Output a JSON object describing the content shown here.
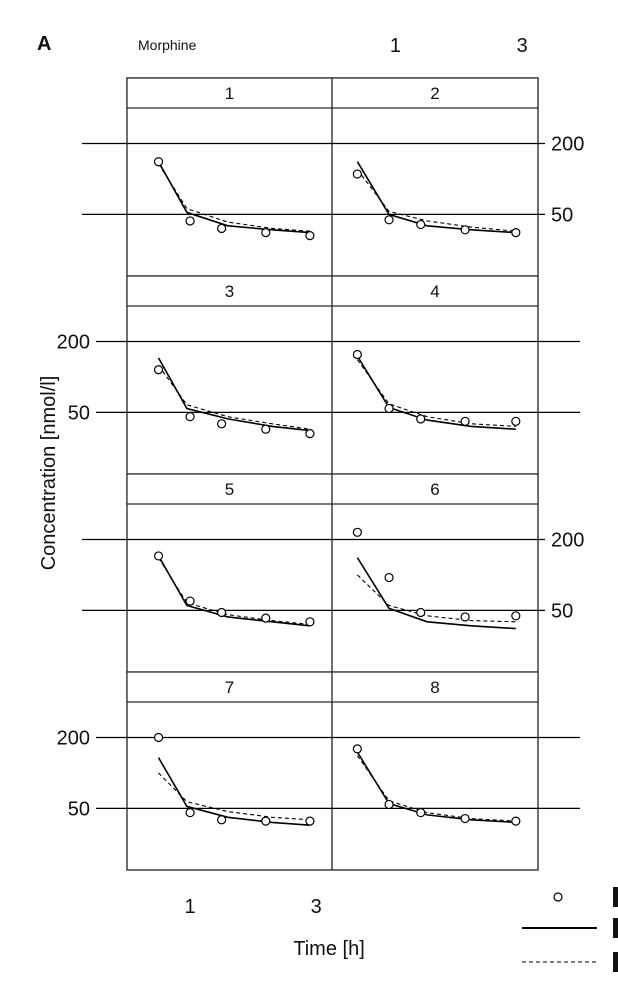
{
  "chart_data": {
    "type": "scatter",
    "panel_tag": "A",
    "drug_label": "Morphine",
    "xlabel": "Time [h]",
    "ylabel": "Concentration [nmol/l]",
    "x_ticks": [
      1,
      3
    ],
    "y_ticks": [
      50,
      200
    ],
    "y_scale": "log",
    "xlim": [
      0,
      3.25
    ],
    "ylim": [
      15,
      400
    ],
    "legend": {
      "placement": "bottom-right",
      "items": [
        "",
        "",
        ""
      ]
    },
    "panels": [
      {
        "label": "1",
        "observed": [
          [
            0.5,
            140
          ],
          [
            1.0,
            44
          ],
          [
            1.5,
            38
          ],
          [
            2.2,
            35
          ],
          [
            2.9,
            33
          ]
        ],
        "solid": [
          [
            0.5,
            140
          ],
          [
            0.95,
            52
          ],
          [
            1.6,
            40
          ],
          [
            2.3,
            37
          ],
          [
            2.9,
            35
          ]
        ],
        "dashed": [
          [
            0.5,
            135
          ],
          [
            0.95,
            56
          ],
          [
            1.6,
            43
          ],
          [
            2.3,
            38
          ],
          [
            2.9,
            36
          ]
        ]
      },
      {
        "label": "2",
        "observed": [
          [
            0.4,
            110
          ],
          [
            0.9,
            45
          ],
          [
            1.4,
            41
          ],
          [
            2.1,
            37
          ],
          [
            2.9,
            35
          ]
        ],
        "solid": [
          [
            0.4,
            140
          ],
          [
            0.9,
            50
          ],
          [
            1.5,
            40
          ],
          [
            2.2,
            37
          ],
          [
            2.9,
            35
          ]
        ],
        "dashed": [
          [
            0.4,
            120
          ],
          [
            0.9,
            53
          ],
          [
            1.5,
            44
          ],
          [
            2.2,
            39
          ],
          [
            2.9,
            36
          ]
        ]
      },
      {
        "label": "3",
        "observed": [
          [
            0.5,
            115
          ],
          [
            1.0,
            46
          ],
          [
            1.5,
            40
          ],
          [
            2.2,
            36
          ],
          [
            2.9,
            33
          ]
        ],
        "solid": [
          [
            0.5,
            145
          ],
          [
            0.95,
            54
          ],
          [
            1.6,
            44
          ],
          [
            2.3,
            38
          ],
          [
            2.9,
            35
          ]
        ],
        "dashed": [
          [
            0.5,
            125
          ],
          [
            0.95,
            58
          ],
          [
            1.6,
            46
          ],
          [
            2.3,
            40
          ],
          [
            2.9,
            36
          ]
        ]
      },
      {
        "label": "4",
        "observed": [
          [
            0.4,
            155
          ],
          [
            0.9,
            54
          ],
          [
            1.4,
            44
          ],
          [
            2.1,
            42
          ],
          [
            2.9,
            42
          ]
        ],
        "solid": [
          [
            0.4,
            150
          ],
          [
            0.9,
            55
          ],
          [
            1.5,
            43
          ],
          [
            2.2,
            38
          ],
          [
            2.9,
            36
          ]
        ],
        "dashed": [
          [
            0.4,
            140
          ],
          [
            0.9,
            59
          ],
          [
            1.5,
            46
          ],
          [
            2.2,
            40
          ],
          [
            2.9,
            38
          ]
        ]
      },
      {
        "label": "5",
        "observed": [
          [
            0.5,
            145
          ],
          [
            1.0,
            60
          ],
          [
            1.5,
            48
          ],
          [
            2.2,
            43
          ],
          [
            2.9,
            40
          ]
        ],
        "solid": [
          [
            0.5,
            145
          ],
          [
            0.95,
            55
          ],
          [
            1.6,
            44
          ],
          [
            2.3,
            40
          ],
          [
            2.9,
            37
          ]
        ],
        "dashed": [
          [
            0.5,
            140
          ],
          [
            0.95,
            58
          ],
          [
            1.6,
            46
          ],
          [
            2.3,
            41
          ],
          [
            2.9,
            38
          ]
        ]
      },
      {
        "label": "6",
        "observed": [
          [
            0.4,
            230
          ],
          [
            0.9,
            95
          ],
          [
            1.4,
            48
          ],
          [
            2.1,
            44
          ],
          [
            2.9,
            45
          ]
        ],
        "solid": [
          [
            0.4,
            140
          ],
          [
            0.9,
            52
          ],
          [
            1.5,
            40
          ],
          [
            2.2,
            37
          ],
          [
            2.9,
            35
          ]
        ],
        "dashed": [
          [
            0.4,
            100
          ],
          [
            0.9,
            55
          ],
          [
            1.5,
            45
          ],
          [
            2.2,
            41
          ],
          [
            2.9,
            40
          ]
        ]
      },
      {
        "label": "7",
        "observed": [
          [
            0.5,
            200
          ],
          [
            1.0,
            46
          ],
          [
            1.5,
            40
          ],
          [
            2.2,
            39
          ],
          [
            2.9,
            39
          ]
        ],
        "solid": [
          [
            0.5,
            135
          ],
          [
            0.95,
            52
          ],
          [
            1.6,
            42
          ],
          [
            2.3,
            38
          ],
          [
            2.9,
            36
          ]
        ],
        "dashed": [
          [
            0.5,
            100
          ],
          [
            0.95,
            57
          ],
          [
            1.6,
            47
          ],
          [
            2.3,
            42
          ],
          [
            2.9,
            40
          ]
        ]
      },
      {
        "label": "8",
        "observed": [
          [
            0.4,
            160
          ],
          [
            0.9,
            54
          ],
          [
            1.4,
            46
          ],
          [
            2.1,
            41
          ],
          [
            2.9,
            39
          ]
        ],
        "solid": [
          [
            0.4,
            150
          ],
          [
            0.9,
            55
          ],
          [
            1.5,
            44
          ],
          [
            2.2,
            40
          ],
          [
            2.9,
            38
          ]
        ],
        "dashed": [
          [
            0.4,
            140
          ],
          [
            0.9,
            58
          ],
          [
            1.5,
            46
          ],
          [
            2.2,
            41
          ],
          [
            2.9,
            39
          ]
        ]
      }
    ]
  }
}
